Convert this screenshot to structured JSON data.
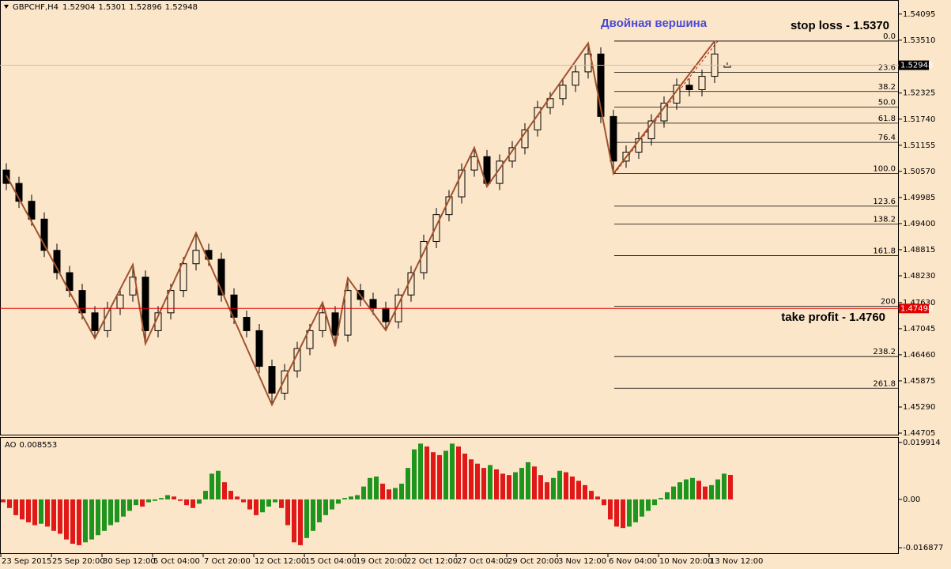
{
  "chart_data": [
    {
      "type": "candlestick",
      "symbol": "GBPCHF,H4",
      "open": [
        1.506,
        1.503,
        1.499,
        1.495,
        1.488,
        1.483,
        1.479,
        1.474,
        1.47,
        1.475,
        1.478,
        1.482,
        1.47,
        1.474,
        1.479,
        1.485,
        1.488,
        1.486,
        1.478,
        1.473,
        1.47,
        1.462,
        1.456,
        1.461,
        1.466,
        1.47,
        1.474,
        1.469,
        1.479,
        1.477,
        1.475,
        1.472,
        1.478,
        1.483,
        1.49,
        1.496,
        1.5,
        1.506,
        1.509,
        1.503,
        1.508,
        1.511,
        1.515,
        1.52,
        1.522,
        1.525,
        1.528,
        1.532,
        1.518,
        1.508,
        1.51,
        1.513,
        1.517,
        1.521,
        1.525,
        1.524,
        1.527,
        1.52904
      ],
      "high": [
        1.5075,
        1.5045,
        1.5005,
        1.4965,
        1.4895,
        1.4845,
        1.4805,
        1.4755,
        1.4765,
        1.4795,
        1.4848,
        1.4835,
        1.4755,
        1.4805,
        1.4865,
        1.4919,
        1.4895,
        1.4875,
        1.4795,
        1.4745,
        1.4715,
        1.4635,
        1.4625,
        1.4675,
        1.4715,
        1.4763,
        1.4755,
        1.4818,
        1.4805,
        1.4785,
        1.4765,
        1.4795,
        1.4845,
        1.4915,
        1.4975,
        1.5015,
        1.5075,
        1.511,
        1.5105,
        1.5095,
        1.5125,
        1.5165,
        1.5215,
        1.5235,
        1.5265,
        1.5295,
        1.5344,
        1.5335,
        1.5195,
        1.5115,
        1.5145,
        1.5185,
        1.5225,
        1.5265,
        1.5265,
        1.5285,
        1.5349,
        1.5301
      ],
      "low": [
        1.5015,
        1.4975,
        1.4935,
        1.4865,
        1.4815,
        1.4775,
        1.4725,
        1.4683,
        1.4685,
        1.4735,
        1.4765,
        1.4671,
        1.4685,
        1.4725,
        1.4775,
        1.4835,
        1.4845,
        1.4765,
        1.4715,
        1.4685,
        1.4605,
        1.4534,
        1.4545,
        1.4595,
        1.4645,
        1.4685,
        1.4665,
        1.4675,
        1.4755,
        1.4735,
        1.4701,
        1.4705,
        1.4765,
        1.4815,
        1.4885,
        1.4945,
        1.4985,
        1.5045,
        1.5023,
        1.5015,
        1.5065,
        1.5095,
        1.5135,
        1.5185,
        1.5205,
        1.5235,
        1.5265,
        1.5165,
        1.5052,
        1.5065,
        1.5085,
        1.5115,
        1.5155,
        1.5195,
        1.5225,
        1.5225,
        1.5255,
        1.52896
      ],
      "close": [
        1.503,
        1.499,
        1.495,
        1.488,
        1.483,
        1.479,
        1.474,
        1.47,
        1.475,
        1.478,
        1.482,
        1.47,
        1.474,
        1.479,
        1.485,
        1.488,
        1.486,
        1.478,
        1.473,
        1.47,
        1.462,
        1.456,
        1.461,
        1.466,
        1.47,
        1.474,
        1.469,
        1.479,
        1.477,
        1.475,
        1.472,
        1.478,
        1.483,
        1.49,
        1.496,
        1.5,
        1.506,
        1.509,
        1.503,
        1.508,
        1.511,
        1.515,
        1.52,
        1.522,
        1.525,
        1.528,
        1.532,
        1.518,
        1.508,
        1.51,
        1.513,
        1.517,
        1.521,
        1.525,
        1.524,
        1.527,
        1.532,
        1.52948
      ],
      "color": "#000000",
      "zigzag": {
        "color": "#a0522d",
        "values": [
          1.5048,
          1.4996,
          1.4944,
          1.4892,
          1.484,
          1.4787,
          1.4735,
          1.4683,
          1.4738,
          1.4793,
          1.4848,
          1.4671,
          1.4733,
          1.4795,
          1.4857,
          1.4919,
          1.4855,
          1.4791,
          1.4726,
          1.4662,
          1.4598,
          1.4534,
          1.4591,
          1.4648,
          1.4706,
          1.4763,
          1.4665,
          1.4818,
          1.4779,
          1.474,
          1.4701,
          1.4759,
          1.4818,
          1.4876,
          1.4935,
          1.4993,
          1.5052,
          1.511,
          1.5023,
          1.5063,
          1.5103,
          1.5143,
          1.5183,
          1.5224,
          1.5264,
          1.5304,
          1.5344,
          1.5198,
          1.5052,
          1.5089,
          1.5126,
          1.5163,
          1.52,
          1.5238,
          1.5275,
          1.5312,
          1.5349,
          null
        ]
      },
      "fibo": {
        "color": "#000000",
        "levels": [
          {
            "value": 1.5349,
            "label": "0.0"
          },
          {
            "value": 1.5279,
            "label": "23.6"
          },
          {
            "value": 1.5236,
            "label": "38.2"
          },
          {
            "value": 1.5201,
            "label": "50.0"
          },
          {
            "value": 1.5165,
            "label": "61.8"
          },
          {
            "value": 1.5122,
            "label": "76.4"
          },
          {
            "value": 1.5052,
            "label": "100.0"
          },
          {
            "value": 1.4979,
            "label": "123.6"
          },
          {
            "value": 1.4939,
            "label": "138.2"
          },
          {
            "value": 1.4868,
            "label": "161.8"
          },
          {
            "value": 1.4755,
            "label": "200"
          },
          {
            "value": 1.4642,
            "label": "238.2"
          },
          {
            "value": 1.4571,
            "label": "261.8"
          }
        ]
      },
      "hline": {
        "value": 1.47498,
        "color": "#e00000"
      },
      "annotations": [
        {
          "text": "Двойная вершина",
          "color": "#4a4ad8"
        },
        {
          "text": "stop loss - 1.5370",
          "color": "#000000"
        },
        {
          "text": "take profit - 1.4760",
          "color": "#000000"
        }
      ],
      "ylim": [
        1.4467,
        1.5441
      ],
      "yticks": [
        {
          "value": 1.54095,
          "label": "1.54095"
        },
        {
          "value": 1.5351,
          "label": "1.53510"
        },
        {
          "value": 1.52325,
          "label": "1.52325"
        },
        {
          "value": 1.5174,
          "label": "1.51740"
        },
        {
          "value": 1.51155,
          "label": "1.51155"
        },
        {
          "value": 1.5057,
          "label": "1.50570"
        },
        {
          "value": 1.49985,
          "label": "1.49985"
        },
        {
          "value": 1.494,
          "label": "1.49400"
        },
        {
          "value": 1.48815,
          "label": "1.48815"
        },
        {
          "value": 1.4823,
          "label": "1.48230"
        },
        {
          "value": 1.4763,
          "label": "1.47630"
        },
        {
          "value": 1.47045,
          "label": "1.47045"
        },
        {
          "value": 1.4646,
          "label": "1.46460"
        },
        {
          "value": 1.45875,
          "label": "1.45875"
        },
        {
          "value": 1.4529,
          "label": "1.45290"
        },
        {
          "value": 1.44705,
          "label": "1.44705"
        }
      ]
    },
    {
      "type": "histogram",
      "name": "AO",
      "up_color": "#1e961e",
      "down_color": "#e01818",
      "categories": [
        "23 Sep 2015",
        null,
        null,
        null,
        null,
        null,
        null,
        null,
        "25 Sep 20:00",
        null,
        null,
        null,
        null,
        null,
        null,
        null,
        "30 Sep 12:00",
        null,
        null,
        null,
        null,
        null,
        null,
        null,
        "5 Oct 04:00",
        null,
        null,
        null,
        null,
        null,
        null,
        null,
        "7 Oct 20:00",
        null,
        null,
        null,
        null,
        null,
        null,
        null,
        "12 Oct 12:00",
        null,
        null,
        null,
        null,
        null,
        null,
        null,
        "15 Oct 04:00",
        null,
        null,
        null,
        null,
        null,
        null,
        null,
        "19 Oct 20:00",
        null,
        null,
        null,
        null,
        null,
        null,
        null,
        "22 Oct 12:00",
        null,
        null,
        null,
        null,
        null,
        null,
        null,
        "27 Oct 04:00",
        null,
        null,
        null,
        null,
        null,
        null,
        null,
        "29 Oct 20:00",
        null,
        null,
        null,
        null,
        null,
        null,
        null,
        "3 Nov 12:00",
        null,
        null,
        null,
        null,
        null,
        null,
        null,
        "6 Nov 04:00",
        null,
        null,
        null,
        null,
        null,
        null,
        null,
        "10 Nov 20:00",
        null,
        null,
        null,
        null,
        null,
        null,
        null,
        "13 Nov 12:00",
        null,
        null,
        null
      ],
      "values": [
        -0.001,
        -0.003,
        -0.0055,
        -0.007,
        -0.008,
        -0.009,
        -0.0085,
        -0.0095,
        -0.011,
        -0.012,
        -0.014,
        -0.0155,
        -0.016,
        -0.015,
        -0.014,
        -0.0125,
        -0.011,
        -0.009,
        -0.008,
        -0.006,
        -0.004,
        -0.002,
        -0.0025,
        -0.001,
        -0.0005,
        0.0005,
        0.0015,
        0.001,
        -0.0005,
        -0.002,
        -0.003,
        -0.0015,
        0.003,
        0.009,
        0.01,
        0.006,
        0.003,
        0.001,
        -0.001,
        -0.0035,
        -0.0055,
        -0.0045,
        -0.0025,
        -0.001,
        -0.003,
        -0.009,
        -0.015,
        -0.016,
        -0.0135,
        -0.011,
        -0.008,
        -0.0055,
        -0.0035,
        -0.0015,
        0.0005,
        0.001,
        0.0015,
        0.0045,
        0.0075,
        0.008,
        0.0055,
        0.0035,
        0.004,
        0.0055,
        0.011,
        0.0175,
        0.0195,
        0.0185,
        0.0165,
        0.0155,
        0.017,
        0.0195,
        0.0185,
        0.016,
        0.014,
        0.0125,
        0.011,
        0.012,
        0.0105,
        0.009,
        0.0085,
        0.0095,
        0.011,
        0.013,
        0.0115,
        0.0085,
        0.006,
        0.0075,
        0.01,
        0.0095,
        0.008,
        0.0065,
        0.005,
        0.003,
        0.001,
        -0.002,
        -0.007,
        -0.0095,
        -0.01,
        -0.0095,
        -0.008,
        -0.006,
        -0.004,
        -0.002,
        0.0005,
        0.0025,
        0.0045,
        0.006,
        0.007,
        0.0075,
        0.0065,
        0.0045,
        0.005,
        0.007,
        0.009,
        0.008553
      ],
      "ylim": [
        -0.021,
        0.0218
      ],
      "yticks": [
        0.019914,
        {
          "value": 0,
          "label": "0.00"
        },
        -0.016877
      ]
    }
  ]
}
